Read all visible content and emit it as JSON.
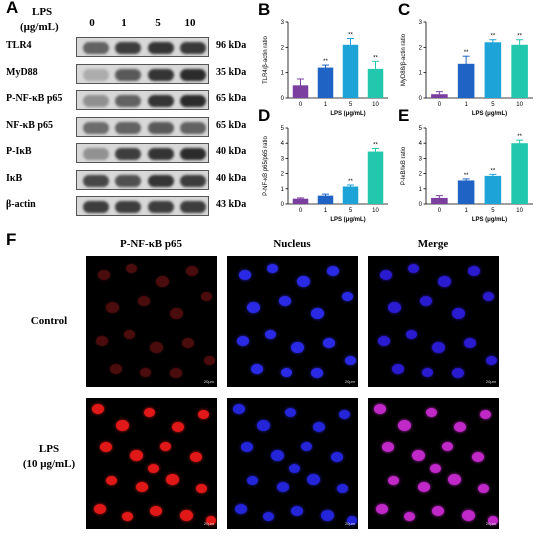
{
  "panel_labels": {
    "a": "A",
    "b": "B",
    "c": "C",
    "d": "D",
    "e": "E",
    "f": "F"
  },
  "western": {
    "lps_header_line1": "LPS",
    "lps_header_line2": "(μg/mL)",
    "concentrations": [
      "0",
      "1",
      "5",
      "10"
    ],
    "blots": [
      {
        "protein": "TLR4",
        "kda": "96 kDa",
        "intensity": [
          0.55,
          0.75,
          0.8,
          0.78
        ]
      },
      {
        "protein": "MyD88",
        "kda": "35 kDa",
        "intensity": [
          0.15,
          0.6,
          0.8,
          0.85
        ]
      },
      {
        "protein": "P-NF-κB p65",
        "kda": "65 kDa",
        "intensity": [
          0.3,
          0.55,
          0.8,
          0.85
        ]
      },
      {
        "protein": "NF-κB p65",
        "kda": "65 kDa",
        "intensity": [
          0.5,
          0.55,
          0.6,
          0.55
        ]
      },
      {
        "protein": "P-IκB",
        "kda": "40 kDa",
        "intensity": [
          0.3,
          0.75,
          0.8,
          0.85
        ]
      },
      {
        "protein": "IκB",
        "kda": "40 kDa",
        "intensity": [
          0.7,
          0.65,
          0.8,
          0.75
        ]
      },
      {
        "protein": "β-actin",
        "kda": "43 kDa",
        "intensity": [
          0.75,
          0.75,
          0.75,
          0.75
        ]
      }
    ]
  },
  "colors": {
    "bar_0": "#7b3fa0",
    "bar_1": "#1f63c4",
    "bar_5": "#1ea3d9",
    "bar_10": "#22c7ad"
  },
  "chart_data": [
    {
      "id": "B",
      "type": "bar",
      "categories": [
        "0",
        "1",
        "5",
        "10"
      ],
      "values": [
        0.5,
        1.2,
        2.1,
        1.15
      ],
      "errors": [
        0.25,
        0.1,
        0.25,
        0.3
      ],
      "sig": [
        "",
        "**",
        "**",
        "**"
      ],
      "ylabel": "TLR4/β-actin ratio",
      "xlabel": "LPS (μg/mL)",
      "ylim": [
        0,
        3
      ],
      "yticks": [
        "0",
        "1",
        "2",
        "3"
      ]
    },
    {
      "id": "C",
      "type": "bar",
      "categories": [
        "0",
        "1",
        "5",
        "10"
      ],
      "values": [
        0.15,
        1.35,
        2.2,
        2.1
      ],
      "errors": [
        0.1,
        0.3,
        0.1,
        0.2
      ],
      "sig": [
        "",
        "**",
        "**",
        "**"
      ],
      "ylabel": "MyD88/β-actin ratio",
      "xlabel": "LPS (μg/mL)",
      "ylim": [
        0,
        3
      ],
      "yticks": [
        "0",
        "1",
        "2",
        "3"
      ]
    },
    {
      "id": "D",
      "type": "bar",
      "categories": [
        "0",
        "1",
        "5",
        "10"
      ],
      "values": [
        0.35,
        0.55,
        1.15,
        3.45
      ],
      "errors": [
        0.05,
        0.1,
        0.1,
        0.2
      ],
      "sig": [
        "",
        "",
        "**",
        "**"
      ],
      "ylabel": "P-NF-κB p65/p65 ratio",
      "xlabel": "LPS (μg/mL)",
      "ylim": [
        0,
        5
      ],
      "yticks": [
        "0",
        "1",
        "2",
        "3",
        "4",
        "5"
      ]
    },
    {
      "id": "E",
      "type": "bar",
      "categories": [
        "0",
        "1",
        "5",
        "10"
      ],
      "values": [
        0.4,
        1.55,
        1.85,
        4.0
      ],
      "errors": [
        0.15,
        0.1,
        0.1,
        0.2
      ],
      "sig": [
        "",
        "**",
        "**",
        "**"
      ],
      "ylabel": "P-IκB/IκB ratio",
      "xlabel": "LPS (μg/mL)",
      "ylim": [
        0,
        5
      ],
      "yticks": [
        "0",
        "1",
        "2",
        "3",
        "4",
        "5"
      ]
    }
  ],
  "fluorescence": {
    "column_titles": [
      "P-NF-κB p65",
      "Nucleus",
      "Merge"
    ],
    "row_labels": [
      {
        "line1": "Control",
        "line2": ""
      },
      {
        "line1": "LPS",
        "line2": "(10 μg/mL)"
      }
    ],
    "scale_bar": "20μm"
  }
}
